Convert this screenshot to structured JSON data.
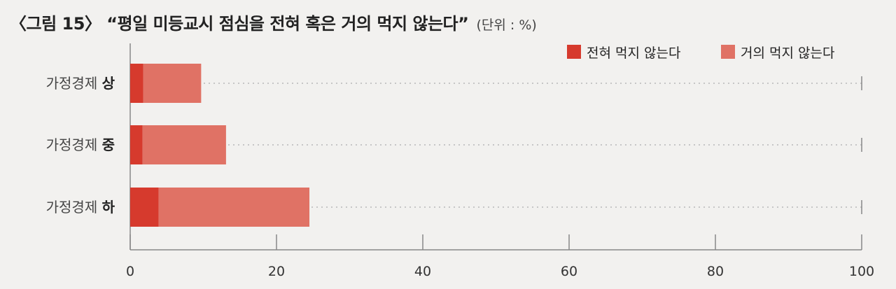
{
  "title": {
    "main": "〈그림 15〉 “평일 미등교시 점심을 전혀 혹은 거의 먹지 않는다”",
    "unit": "(단위 : %)"
  },
  "colors": {
    "series1": "#d63a2d",
    "series2": "#e07265",
    "grid": "#b8b8b8",
    "axis": "#888888",
    "background": "#f2f1ef"
  },
  "chart_data": {
    "type": "bar",
    "orientation": "horizontal",
    "stacked": true,
    "categories": [
      {
        "prefix": "가정경제",
        "suffix": "상"
      },
      {
        "prefix": "가정경제",
        "suffix": "중"
      },
      {
        "prefix": "가정경제",
        "suffix": "하"
      }
    ],
    "series": [
      {
        "name": "전혀 먹지 않는다",
        "values": [
          1.8,
          1.7,
          3.9
        ]
      },
      {
        "name": "거의 먹지 않는다",
        "values": [
          7.9,
          11.4,
          20.6
        ]
      }
    ],
    "xlim": [
      0,
      100
    ],
    "xticks": [
      0,
      20,
      40,
      60,
      80,
      100
    ],
    "legend": "top-right",
    "grid": "dotted horizontal guides per category"
  }
}
